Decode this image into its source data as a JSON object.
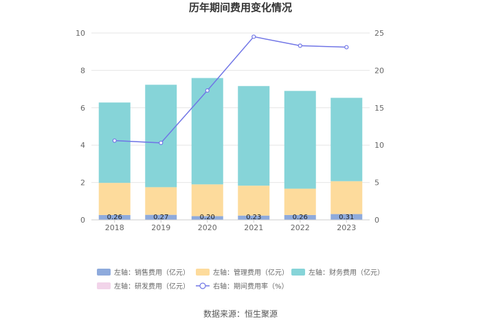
{
  "chart_data": {
    "type": "bar",
    "title": "历年期间费用变化情况",
    "categories": [
      "2018",
      "2019",
      "2020",
      "2021",
      "2022",
      "2023"
    ],
    "stacked": true,
    "left_axis": {
      "ylim": [
        0,
        10
      ],
      "ticks": [
        0,
        2,
        4,
        6,
        8,
        10
      ]
    },
    "right_axis": {
      "ylim": [
        0,
        25
      ],
      "ticks": [
        0,
        5,
        10,
        15,
        20,
        25
      ]
    },
    "series": [
      {
        "name": "左轴：销售费用（亿元）",
        "axis": "left",
        "type": "bar",
        "color": "#8eaadc",
        "values": [
          0.26,
          0.27,
          0.2,
          0.23,
          0.26,
          0.31
        ],
        "show_labels": true
      },
      {
        "name": "左轴：管理费用（亿元）",
        "axis": "left",
        "type": "bar",
        "color": "#fddb9c",
        "values": [
          1.72,
          1.48,
          1.7,
          1.6,
          1.41,
          1.76
        ]
      },
      {
        "name": "左轴：财务费用（亿元）",
        "axis": "left",
        "type": "bar",
        "color": "#86d4d8",
        "values": [
          4.3,
          5.48,
          5.69,
          5.33,
          5.23,
          4.46
        ]
      },
      {
        "name": "左轴：研发费用（亿元）",
        "axis": "left",
        "type": "bar",
        "color": "#f2d4ea",
        "values": [
          0,
          0,
          0,
          0,
          0,
          0
        ]
      },
      {
        "name": "右轴：期间费用率（%）",
        "axis": "right",
        "type": "line",
        "color": "#7075e6",
        "values": [
          10.6,
          10.3,
          17.3,
          24.5,
          23.3,
          23.1
        ]
      }
    ],
    "grid": true,
    "legend_position": "bottom"
  },
  "source": "数据来源：恒生聚源"
}
